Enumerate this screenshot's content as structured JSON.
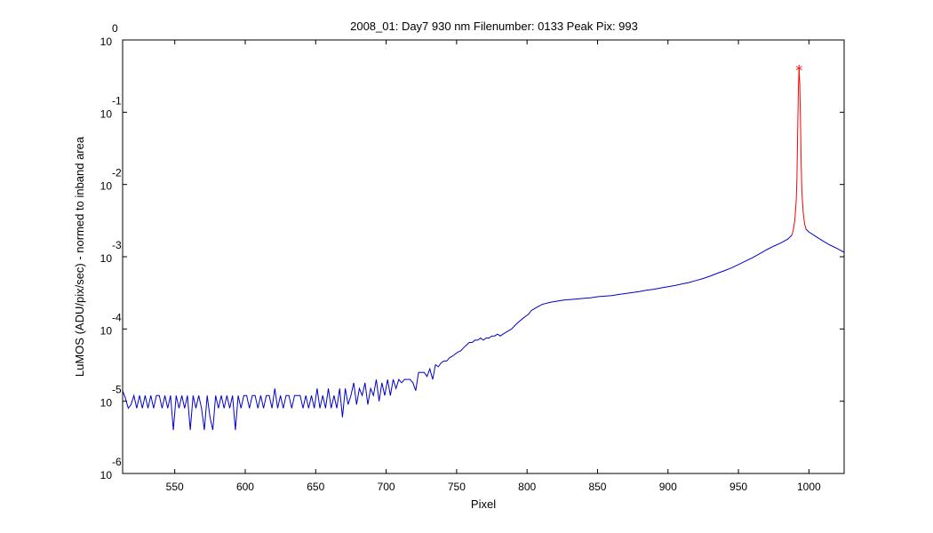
{
  "chart_data": {
    "type": "line",
    "title": "2008_01: Day7  930 nm  Filenumber: 0133 Peak Pix: 993",
    "xlabel": "Pixel",
    "ylabel": "LuMOS (ADU/pix/sec) - normed to inband area",
    "xlim": [
      513,
      1025
    ],
    "ylim": [
      1e-06,
      1
    ],
    "yscale": "log",
    "grid": false,
    "x_ticks": [
      550,
      600,
      650,
      700,
      750,
      800,
      850,
      900,
      950,
      1000
    ],
    "x_tick_labels": [
      "550",
      "600",
      "650",
      "700",
      "750",
      "800",
      "850",
      "900",
      "950",
      "1000"
    ],
    "y_ticks": [
      {
        "value": 1,
        "base": "10",
        "exp": "0"
      },
      {
        "value": 0.1,
        "base": "10",
        "exp": "-1"
      },
      {
        "value": 0.01,
        "base": "10",
        "exp": "-2"
      },
      {
        "value": 0.001,
        "base": "10",
        "exp": "-3"
      },
      {
        "value": 0.0001,
        "base": "10",
        "exp": "-4"
      },
      {
        "value": 1e-05,
        "base": "10",
        "exp": "-5"
      },
      {
        "value": 1e-06,
        "base": "10",
        "exp": "-6"
      }
    ],
    "series": [
      {
        "color": "#0000cc",
        "points": [
          [
            513,
            1.4e-05
          ],
          [
            515,
            1.1e-05
          ],
          [
            517,
            8e-06
          ],
          [
            519,
            9e-06
          ],
          [
            521,
            1.2e-05
          ],
          [
            523,
            8e-06
          ],
          [
            525,
            1.2e-05
          ],
          [
            527,
            8e-06
          ],
          [
            529,
            1.2e-05
          ],
          [
            531,
            8e-06
          ],
          [
            533,
            1.2e-05
          ],
          [
            535,
            8e-06
          ],
          [
            537,
            1.2e-05
          ],
          [
            539,
            1.2e-05
          ],
          [
            541,
            8e-06
          ],
          [
            543,
            1.2e-05
          ],
          [
            545,
            8e-06
          ],
          [
            547,
            1.2e-05
          ],
          [
            549,
            4e-06
          ],
          [
            551,
            1.2e-05
          ],
          [
            553,
            8e-06
          ],
          [
            555,
            1.2e-05
          ],
          [
            557,
            8e-06
          ],
          [
            559,
            1.2e-05
          ],
          [
            561,
            4e-06
          ],
          [
            563,
            1.2e-05
          ],
          [
            565,
            8e-06
          ],
          [
            567,
            1.2e-05
          ],
          [
            569,
            8e-06
          ],
          [
            571,
            4e-06
          ],
          [
            573,
            1.2e-05
          ],
          [
            575,
            6e-06
          ],
          [
            577,
            4e-06
          ],
          [
            579,
            1.2e-05
          ],
          [
            581,
            8e-06
          ],
          [
            583,
            1.2e-05
          ],
          [
            585,
            8e-06
          ],
          [
            587,
            1.2e-05
          ],
          [
            589,
            8e-06
          ],
          [
            591,
            1.2e-05
          ],
          [
            593,
            4e-06
          ],
          [
            595,
            1.2e-05
          ],
          [
            597,
            8e-06
          ],
          [
            599,
            1.2e-05
          ],
          [
            601,
            1.2e-05
          ],
          [
            603,
            8e-06
          ],
          [
            605,
            1.2e-05
          ],
          [
            607,
            1.2e-05
          ],
          [
            609,
            8e-06
          ],
          [
            611,
            1.2e-05
          ],
          [
            613,
            8e-06
          ],
          [
            615,
            1.2e-05
          ],
          [
            617,
            1.2e-05
          ],
          [
            619,
            8e-06
          ],
          [
            621,
            1.5e-05
          ],
          [
            623,
            8e-06
          ],
          [
            625,
            1.2e-05
          ],
          [
            627,
            8e-06
          ],
          [
            629,
            1.2e-05
          ],
          [
            631,
            1.2e-05
          ],
          [
            633,
            8e-06
          ],
          [
            635,
            1.2e-05
          ],
          [
            637,
            1.2e-05
          ],
          [
            639,
            1.2e-05
          ],
          [
            641,
            8e-06
          ],
          [
            643,
            1.2e-05
          ],
          [
            645,
            8e-06
          ],
          [
            647,
            1.2e-05
          ],
          [
            649,
            8e-06
          ],
          [
            651,
            1.5e-05
          ],
          [
            653,
            8e-06
          ],
          [
            655,
            1.2e-05
          ],
          [
            657,
            8e-06
          ],
          [
            659,
            1.5e-05
          ],
          [
            661,
            8e-06
          ],
          [
            663,
            1.2e-05
          ],
          [
            665,
            8e-06
          ],
          [
            667,
            1.5e-05
          ],
          [
            669,
            6e-06
          ],
          [
            671,
            1.5e-05
          ],
          [
            673,
            9e-06
          ],
          [
            675,
            1.2e-05
          ],
          [
            677,
            1.8e-05
          ],
          [
            679,
            9e-06
          ],
          [
            681,
            1.5e-05
          ],
          [
            683,
            1.2e-05
          ],
          [
            685,
            1.8e-05
          ],
          [
            687,
            9e-06
          ],
          [
            689,
            1.5e-05
          ],
          [
            691,
            1.2e-05
          ],
          [
            693,
            2e-05
          ],
          [
            695,
            1e-05
          ],
          [
            697,
            1.8e-05
          ],
          [
            699,
            1.2e-05
          ],
          [
            701,
            2e-05
          ],
          [
            703,
            1.2e-05
          ],
          [
            705,
            2e-05
          ],
          [
            707,
            1.5e-05
          ],
          [
            709,
            2e-05
          ],
          [
            711,
            1.8e-05
          ],
          [
            713,
            2e-05
          ],
          [
            715,
            2e-05
          ],
          [
            717,
            2e-05
          ],
          [
            719,
            1.8e-05
          ],
          [
            721,
            1.4e-05
          ],
          [
            723,
            2.5e-05
          ],
          [
            725,
            2.5e-05
          ],
          [
            727,
            2.5e-05
          ],
          [
            729,
            2.2e-05
          ],
          [
            731,
            2.8e-05
          ],
          [
            733,
            2e-05
          ],
          [
            735,
            3.2e-05
          ],
          [
            737,
            3e-05
          ],
          [
            739,
            3.4e-05
          ],
          [
            741,
            3.6e-05
          ],
          [
            743,
            3.6e-05
          ],
          [
            745,
            4e-05
          ],
          [
            747,
            4.2e-05
          ],
          [
            749,
            4.5e-05
          ],
          [
            751,
            4.8e-05
          ],
          [
            753,
            5e-05
          ],
          [
            755,
            5.5e-05
          ],
          [
            757,
            6e-05
          ],
          [
            759,
            6.5e-05
          ],
          [
            761,
            6.5e-05
          ],
          [
            763,
            7e-05
          ],
          [
            765,
            7e-05
          ],
          [
            767,
            7.5e-05
          ],
          [
            769,
            7e-05
          ],
          [
            771,
            7.5e-05
          ],
          [
            773,
            7.5e-05
          ],
          [
            775,
            8e-05
          ],
          [
            777,
            8e-05
          ],
          [
            779,
            8.5e-05
          ],
          [
            781,
            8e-05
          ],
          [
            783,
            8.5e-05
          ],
          [
            785,
            9e-05
          ],
          [
            787,
            9.5e-05
          ],
          [
            789,
            0.0001
          ],
          [
            791,
            0.00011
          ],
          [
            793,
            0.00012
          ],
          [
            795,
            0.00013
          ],
          [
            797,
            0.00014
          ],
          [
            799,
            0.00015
          ],
          [
            801,
            0.00016
          ],
          [
            803,
            0.00018
          ],
          [
            805,
            0.00019
          ],
          [
            807,
            0.0002
          ],
          [
            809,
            0.00021
          ],
          [
            811,
            0.00022
          ],
          [
            813,
            0.000225
          ],
          [
            815,
            0.00023
          ],
          [
            817,
            0.000235
          ],
          [
            820,
            0.00024
          ],
          [
            825,
            0.00025
          ],
          [
            830,
            0.000255
          ],
          [
            835,
            0.00026
          ],
          [
            840,
            0.000265
          ],
          [
            845,
            0.00027
          ],
          [
            850,
            0.00028
          ],
          [
            855,
            0.000285
          ],
          [
            860,
            0.00029
          ],
          [
            865,
            0.0003
          ],
          [
            870,
            0.00031
          ],
          [
            875,
            0.00032
          ],
          [
            880,
            0.00033
          ],
          [
            885,
            0.000345
          ],
          [
            890,
            0.000355
          ],
          [
            895,
            0.00037
          ],
          [
            900,
            0.000385
          ],
          [
            905,
            0.0004
          ],
          [
            910,
            0.00042
          ],
          [
            915,
            0.00044
          ],
          [
            920,
            0.00047
          ],
          [
            925,
            0.0005
          ],
          [
            930,
            0.00054
          ],
          [
            935,
            0.00059
          ],
          [
            940,
            0.00064
          ],
          [
            945,
            0.0007
          ],
          [
            950,
            0.00078
          ],
          [
            955,
            0.00087
          ],
          [
            960,
            0.00097
          ],
          [
            965,
            0.0011
          ],
          [
            970,
            0.00125
          ],
          [
            975,
            0.0014
          ],
          [
            980,
            0.00155
          ],
          [
            985,
            0.00175
          ],
          [
            988,
            0.002
          ]
        ]
      },
      {
        "color": "#ff0000",
        "points": [
          [
            988,
            0.002
          ],
          [
            989,
            0.0024
          ],
          [
            990,
            0.0032
          ],
          [
            991,
            0.006
          ],
          [
            991.5,
            0.012
          ],
          [
            992,
            0.05
          ],
          [
            992.5,
            0.2
          ],
          [
            993,
            0.4
          ],
          [
            993.5,
            0.25
          ],
          [
            994,
            0.08
          ],
          [
            994.5,
            0.02
          ],
          [
            995,
            0.008
          ],
          [
            996,
            0.004
          ],
          [
            997,
            0.0028
          ],
          [
            998,
            0.0024
          ]
        ]
      },
      {
        "color": "#0000cc",
        "points": [
          [
            998,
            0.0024
          ],
          [
            1000,
            0.0022
          ],
          [
            1005,
            0.0019
          ],
          [
            1010,
            0.00165
          ],
          [
            1015,
            0.00145
          ],
          [
            1020,
            0.0013
          ],
          [
            1025,
            0.00115
          ]
        ]
      }
    ],
    "peak_marker": {
      "x": 993,
      "y": 0.4,
      "symbol": "*",
      "color": "#ff0000"
    }
  }
}
